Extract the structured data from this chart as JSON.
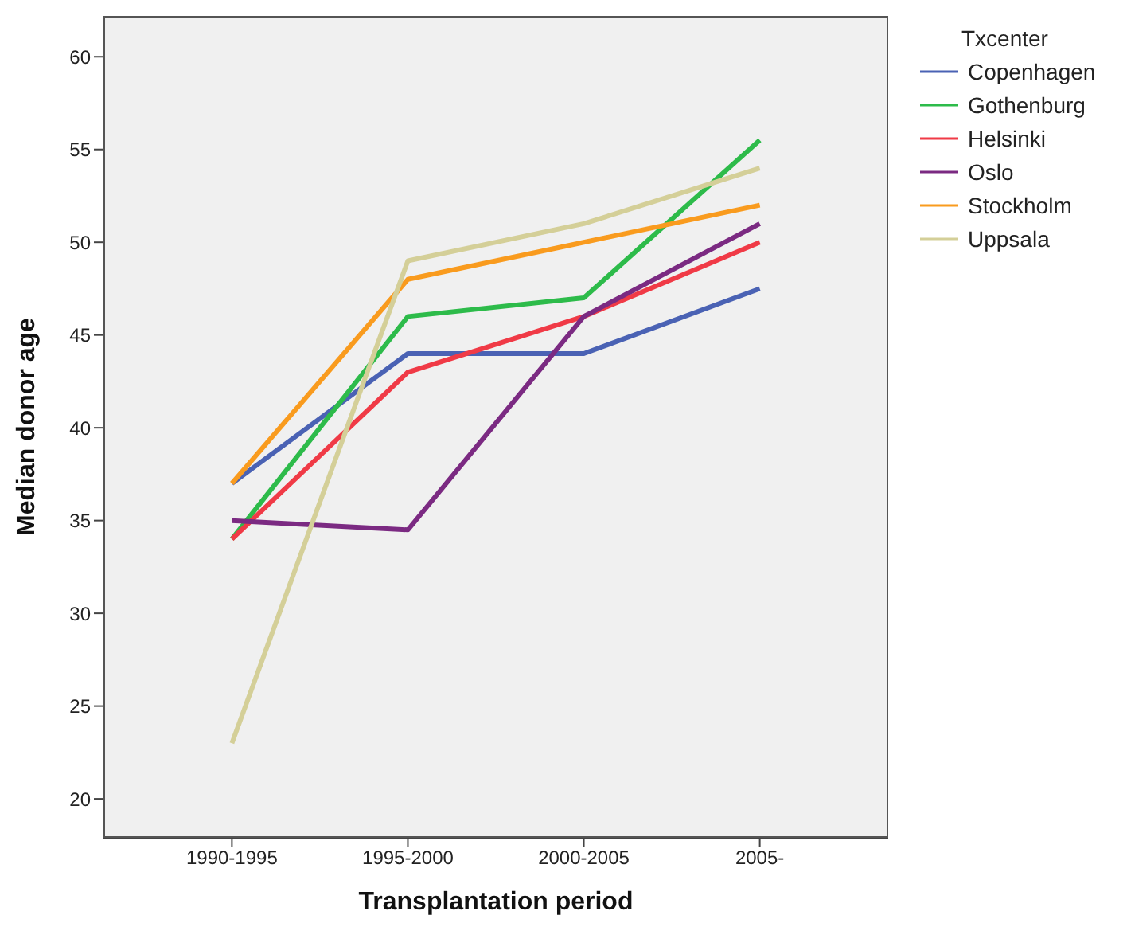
{
  "chart_data": {
    "type": "line",
    "xlabel": "Transplantation period",
    "ylabel": "Median donor age",
    "legend_title": "Txcenter",
    "categories": [
      "1990-1995",
      "1995-2000",
      "2000-2005",
      "2005-"
    ],
    "series": [
      {
        "name": "Copenhagen",
        "color": "#4a62b4",
        "values": [
          37,
          44,
          44,
          47.5
        ]
      },
      {
        "name": "Gothenburg",
        "color": "#2dbb4a",
        "values": [
          34,
          46,
          47,
          55.5
        ]
      },
      {
        "name": "Helsinki",
        "color": "#f03a46",
        "values": [
          34,
          43,
          46,
          50
        ]
      },
      {
        "name": "Oslo",
        "color": "#7b2a82",
        "values": [
          35,
          34.5,
          46,
          51
        ]
      },
      {
        "name": "Stockholm",
        "color": "#f99b1e",
        "values": [
          37,
          48,
          50,
          52
        ]
      },
      {
        "name": "Uppsala",
        "color": "#d4cf98",
        "values": [
          23,
          49,
          51,
          54
        ]
      }
    ],
    "ylim": [
      17.9,
      62.2
    ],
    "yticks": [
      20,
      25,
      30,
      35,
      40,
      45,
      50,
      55,
      60
    ],
    "grid": false,
    "legend": "right",
    "marker": "none",
    "line_style": "solid"
  }
}
